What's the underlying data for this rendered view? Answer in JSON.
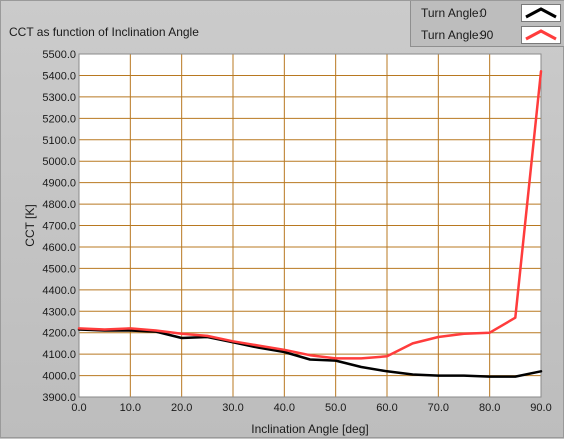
{
  "window": {
    "title": "CCT as function of Inclination Angle"
  },
  "legend": {
    "items": [
      {
        "label": "Turn Angle:",
        "value": "0",
        "color": "#000000"
      },
      {
        "label": "Turn Angle:",
        "value": "90",
        "color": "#ff3c3c"
      }
    ]
  },
  "colors": {
    "plot_background": "#ffffff",
    "grid": "#b87820",
    "panel": "#c4c4c4"
  },
  "chart_data": {
    "type": "line",
    "title": "CCT as function of Inclination Angle",
    "xlabel": "Inclination Angle [deg]",
    "ylabel": "CCT [K]",
    "xlim": [
      0,
      90
    ],
    "ylim": [
      3900,
      5500
    ],
    "grid": true,
    "legend_position": "top-right",
    "x_ticks": [
      "0.0",
      "10.0",
      "20.0",
      "30.0",
      "40.0",
      "50.0",
      "60.0",
      "70.0",
      "80.0",
      "90.0"
    ],
    "y_ticks": [
      "3900.0",
      "4000.0",
      "4100.0",
      "4200.0",
      "4300.0",
      "4400.0",
      "4500.0",
      "4600.0",
      "4700.0",
      "4800.0",
      "4900.0",
      "5000.0",
      "5100.0",
      "5200.0",
      "5300.0",
      "5400.0",
      "5500.0"
    ],
    "x": [
      0,
      5,
      10,
      15,
      20,
      25,
      30,
      35,
      40,
      45,
      50,
      55,
      60,
      65,
      70,
      75,
      80,
      85,
      90
    ],
    "series": [
      {
        "name": "Turn Angle: 0",
        "color": "#000000",
        "values": [
          4215,
          4210,
          4210,
          4205,
          4175,
          4180,
          4155,
          4130,
          4110,
          4075,
          4070,
          4040,
          4020,
          4005,
          4000,
          4000,
          3995,
          3995,
          4020
        ]
      },
      {
        "name": "Turn Angle: 90",
        "color": "#ff3c3c",
        "values": [
          4220,
          4215,
          4220,
          4210,
          4195,
          4185,
          4160,
          4140,
          4120,
          4095,
          4080,
          4080,
          4090,
          4150,
          4180,
          4195,
          4200,
          4270,
          5420
        ]
      }
    ]
  }
}
